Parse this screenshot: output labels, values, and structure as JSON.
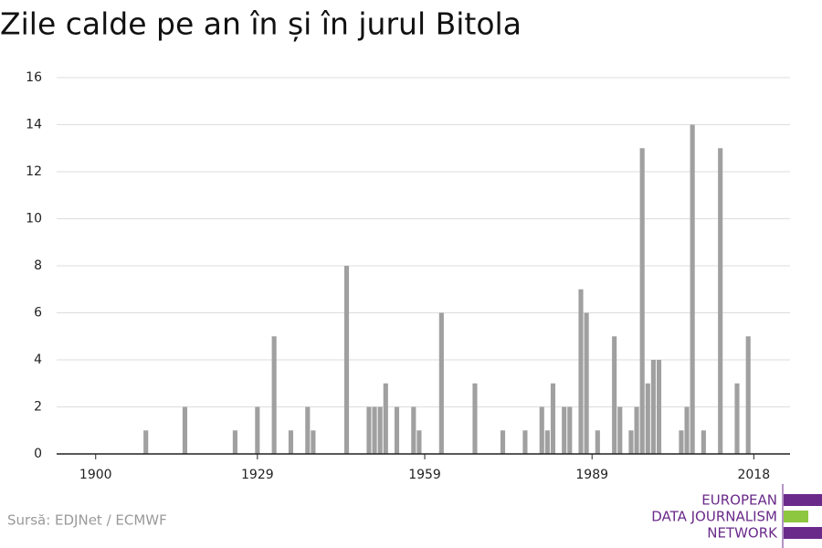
{
  "chart_data": {
    "type": "bar",
    "title": "Zile calde pe an în și în jurul Bitola",
    "x": [
      1909,
      1916,
      1925,
      1929,
      1932,
      1935,
      1938,
      1939,
      1945,
      1949,
      1950,
      1951,
      1952,
      1954,
      1957,
      1958,
      1962,
      1968,
      1973,
      1977,
      1980,
      1981,
      1982,
      1984,
      1985,
      1987,
      1988,
      1990,
      1993,
      1994,
      1996,
      1997,
      1998,
      1999,
      2000,
      2001,
      2005,
      2006,
      2007,
      2009,
      2012,
      2015,
      2017
    ],
    "values": [
      1,
      2,
      1,
      2,
      5,
      1,
      2,
      1,
      8,
      2,
      2,
      2,
      3,
      2,
      2,
      1,
      6,
      3,
      1,
      1,
      2,
      1,
      3,
      2,
      2,
      7,
      6,
      1,
      5,
      2,
      1,
      2,
      13,
      3,
      4,
      4,
      1,
      2,
      14,
      1,
      13,
      3,
      5
    ],
    "color": "#a0a0a0",
    "xlim": [
      1893,
      2024.5
    ],
    "xticks": [
      1900,
      1929,
      1959,
      1989,
      2018
    ],
    "ylim": [
      0,
      16
    ],
    "yticks": [
      0,
      2,
      4,
      6,
      8,
      10,
      12,
      14,
      16
    ],
    "grid": true,
    "source": "Sursă: EDJNet / ECMWF"
  },
  "logo": {
    "lines": [
      "EUROPEAN",
      "DATA JOURNALISM",
      "NETWORK"
    ]
  }
}
